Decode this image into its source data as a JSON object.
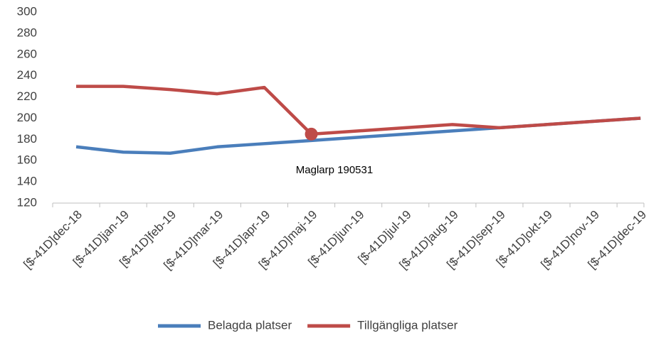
{
  "chart_data": {
    "type": "line",
    "categories": [
      "[$-41D]dec-18",
      "[$-41D]jan-19",
      "[$-41D]feb-19",
      "[$-41D]mar-19",
      "[$-41D]apr-19",
      "[$-41D]maj-19",
      "[$-41D]jun-19",
      "[$-41D]jul-19",
      "[$-41D]aug-19",
      "[$-41D]sep-19",
      "[$-41D]okt-19",
      "[$-41D]nov-19",
      "[$-41D]dec-19"
    ],
    "series": [
      {
        "name": "Belagda platser",
        "color": "#4a7ebb",
        "values": [
          173,
          168,
          167,
          173,
          176,
          179,
          182,
          185,
          188,
          191,
          194,
          197,
          200
        ]
      },
      {
        "name": "Tillgängliga platser",
        "color": "#be4b48",
        "values": [
          230,
          230,
          227,
          223,
          229,
          185,
          188,
          191,
          194,
          191,
          194,
          197,
          200
        ]
      }
    ],
    "annotation": "Maglarp 190531",
    "ylim": [
      120,
      300
    ],
    "yticks": [
      120,
      140,
      160,
      180,
      200,
      220,
      240,
      260,
      280,
      300
    ],
    "grid": false,
    "legend": "bottom"
  }
}
